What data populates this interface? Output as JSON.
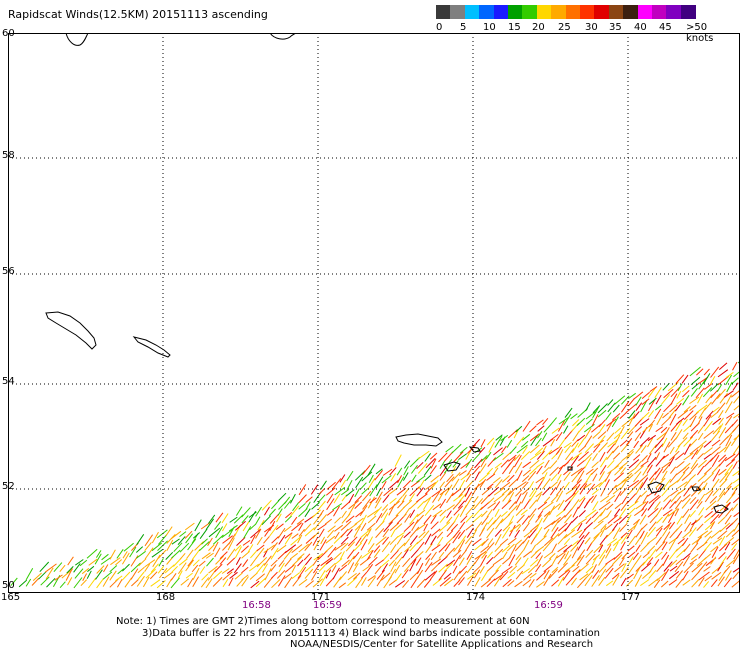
{
  "title": "Rapidscat Winds(12.5KM) 20151113 ascending",
  "legend": {
    "colors": [
      "#3a3a3a",
      "#7f7f7f",
      "#00bfff",
      "#0066ff",
      "#1a1aff",
      "#00a000",
      "#33cc00",
      "#ffd700",
      "#ffaa00",
      "#ff7000",
      "#ff3300",
      "#e00000",
      "#8b4513",
      "#3d2010",
      "#ff00ff",
      "#c000c0",
      "#8000c0",
      "#400080"
    ],
    "ticks": [
      "0",
      "5",
      "10",
      "15",
      "20",
      "25",
      "30",
      "35",
      "40",
      "45",
      ">50 knots"
    ]
  },
  "map": {
    "lat_labels": [
      "60",
      "58",
      "56",
      "54",
      "52",
      "50"
    ],
    "lon_labels": [
      "165",
      "168",
      "171",
      "174",
      "177"
    ],
    "time_labels": [
      "16:58",
      "16:59",
      "16:59"
    ],
    "time_label_color": "#800080"
  },
  "notes": [
    "Note: 1) Times are GMT 2)Times along bottom correspond to measurement at 60N",
    "3)Data buffer is 22 hrs from 20151113 4) Black wind barbs indicate possible contamination",
    "NOAA/NESDIS/Center for Satellite Applications and Research"
  ]
}
